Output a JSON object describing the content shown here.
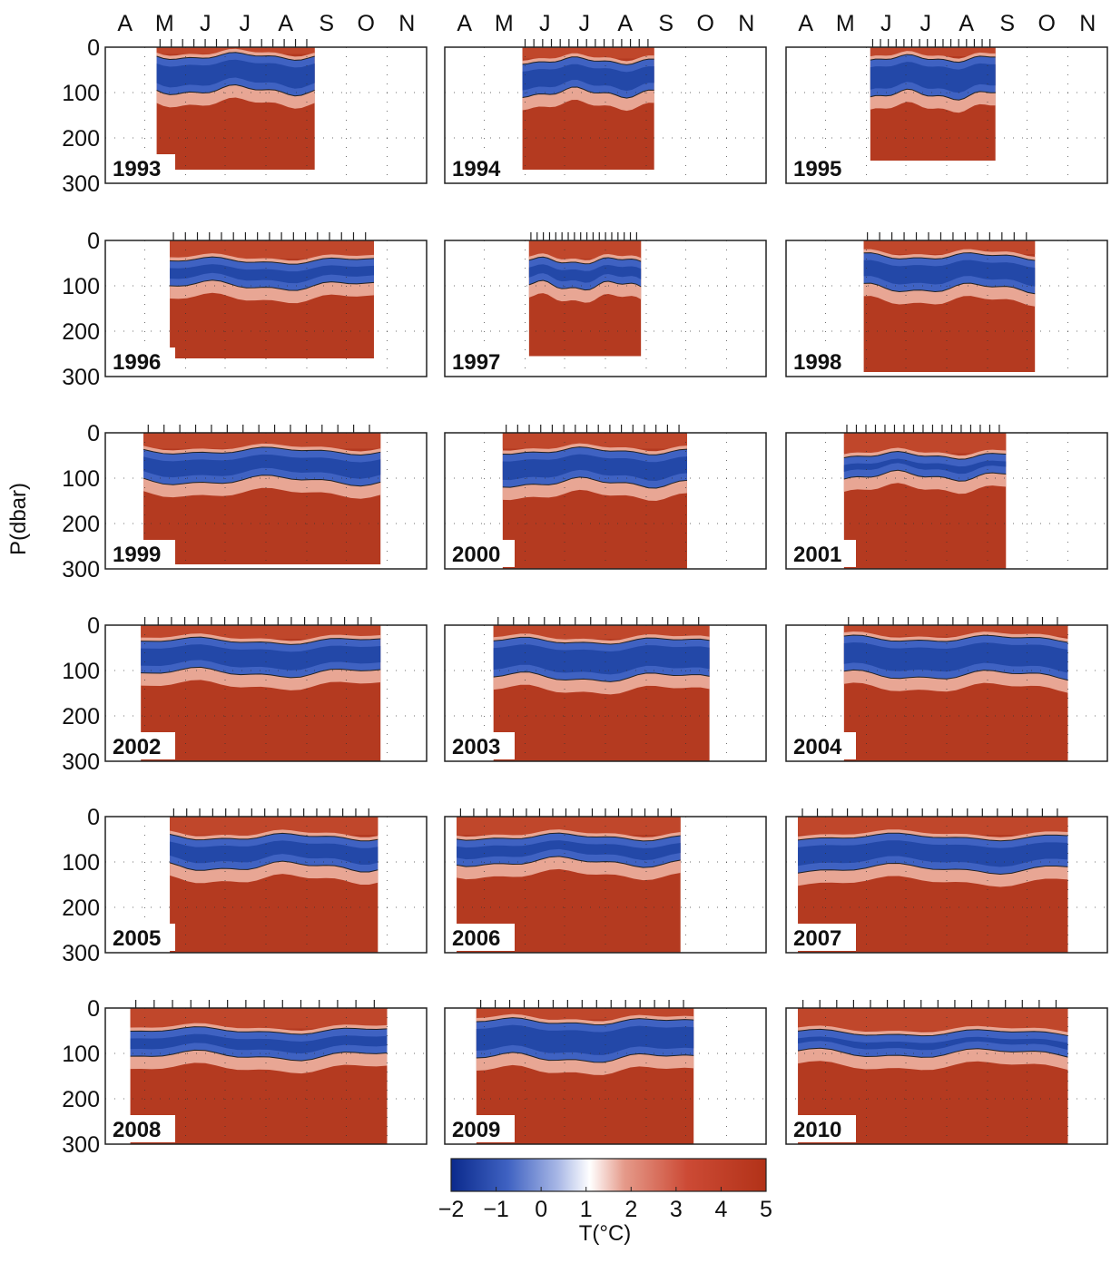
{
  "chart_data": {
    "type": "heatmap",
    "xlabel": "",
    "ylabel": "P(dbar)",
    "month_ticks": [
      "A",
      "M",
      "J",
      "J",
      "A",
      "S",
      "O",
      "N"
    ],
    "ylim": [
      0,
      300
    ],
    "y_ticks": [
      "0",
      "100",
      "200",
      "300"
    ],
    "colorbar": {
      "label": "T(°C)",
      "range": [
        -2,
        5
      ],
      "ticks": [
        "−2",
        "−1",
        "0",
        "1",
        "2",
        "3",
        "4",
        "5"
      ],
      "colors": [
        "#0b2a8c",
        "#3f62c2",
        "#a9b8e6",
        "#ffffff",
        "#e59a8a",
        "#cc4a35",
        "#b23218"
      ]
    },
    "contour_levels_c": [
      1,
      1
    ],
    "panels": [
      {
        "year": "1993",
        "start_doy": 130,
        "end_doy": 250,
        "top_depth": 20,
        "bot_depth": 95,
        "max_depth": 270
      },
      {
        "year": "1994",
        "start_doy": 150,
        "end_doy": 250,
        "top_depth": 30,
        "bot_depth": 100,
        "max_depth": 270
      },
      {
        "year": "1995",
        "start_doy": 155,
        "end_doy": 250,
        "top_depth": 25,
        "bot_depth": 105,
        "max_depth": 250
      },
      {
        "year": "1996",
        "start_doy": 140,
        "end_doy": 295,
        "top_depth": 45,
        "bot_depth": 100,
        "max_depth": 260
      },
      {
        "year": "1997",
        "start_doy": 155,
        "end_doy": 240,
        "top_depth": 45,
        "bot_depth": 100,
        "max_depth": 255
      },
      {
        "year": "1998",
        "start_doy": 150,
        "end_doy": 280,
        "top_depth": 35,
        "bot_depth": 105,
        "max_depth": 290
      },
      {
        "year": "1999",
        "start_doy": 120,
        "end_doy": 300,
        "top_depth": 40,
        "bot_depth": 105,
        "max_depth": 290
      },
      {
        "year": "2000",
        "start_doy": 135,
        "end_doy": 275,
        "top_depth": 40,
        "bot_depth": 110,
        "max_depth": 300
      },
      {
        "year": "2001",
        "start_doy": 135,
        "end_doy": 258,
        "top_depth": 50,
        "bot_depth": 95,
        "max_depth": 300
      },
      {
        "year": "2002",
        "start_doy": 118,
        "end_doy": 300,
        "top_depth": 35,
        "bot_depth": 105,
        "max_depth": 300
      },
      {
        "year": "2003",
        "start_doy": 128,
        "end_doy": 292,
        "top_depth": 35,
        "bot_depth": 115,
        "max_depth": 300
      },
      {
        "year": "2004",
        "start_doy": 135,
        "end_doy": 305,
        "top_depth": 30,
        "bot_depth": 110,
        "max_depth": 300
      },
      {
        "year": "2005",
        "start_doy": 140,
        "end_doy": 298,
        "top_depth": 45,
        "bot_depth": 110,
        "max_depth": 300
      },
      {
        "year": "2006",
        "start_doy": 100,
        "end_doy": 270,
        "top_depth": 45,
        "bot_depth": 100,
        "max_depth": 300
      },
      {
        "year": "2007",
        "start_doy": 100,
        "end_doy": 305,
        "top_depth": 45,
        "bot_depth": 115,
        "max_depth": 300
      },
      {
        "year": "2008",
        "start_doy": 110,
        "end_doy": 305,
        "top_depth": 50,
        "bot_depth": 105,
        "max_depth": 300
      },
      {
        "year": "2009",
        "start_doy": 115,
        "end_doy": 280,
        "top_depth": 30,
        "bot_depth": 110,
        "max_depth": 300
      },
      {
        "year": "2010",
        "start_doy": 100,
        "end_doy": 305,
        "top_depth": 55,
        "bot_depth": 100,
        "max_depth": 300
      }
    ]
  }
}
